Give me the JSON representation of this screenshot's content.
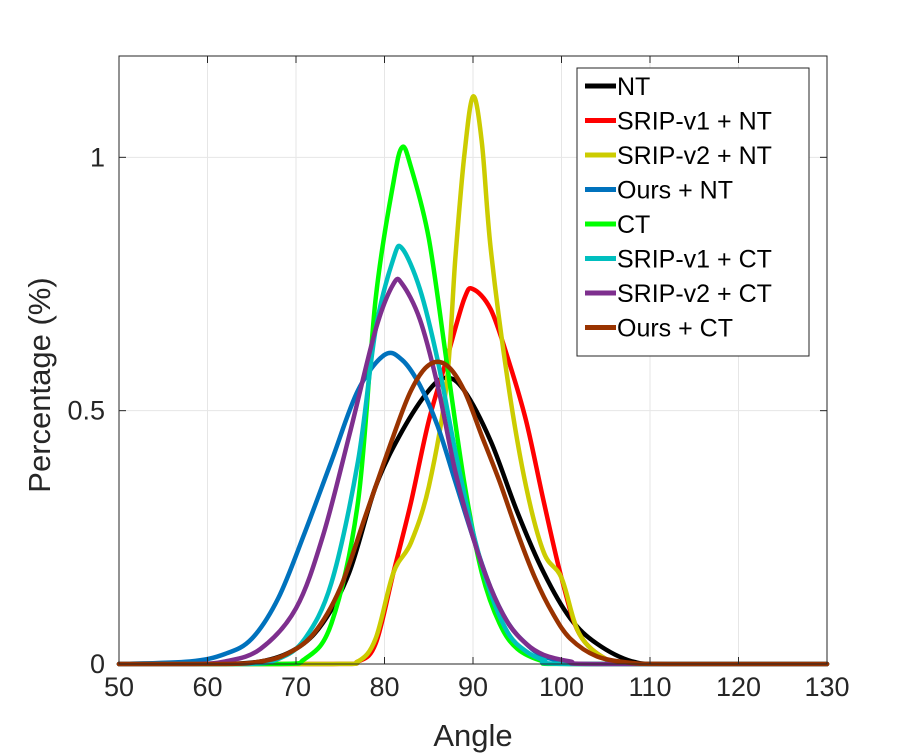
{
  "chart_data": {
    "type": "line",
    "title": "",
    "xlabel": "Angle",
    "ylabel": "Percentage (%)",
    "xlim": [
      50,
      130
    ],
    "ylim": [
      0,
      1.2
    ],
    "xticks": [
      50,
      60,
      70,
      80,
      90,
      100,
      110,
      120,
      130
    ],
    "yticks": [
      0,
      0.5,
      1
    ],
    "ytick_labels": [
      "0",
      "0.5",
      "1"
    ],
    "grid": true,
    "legend_position": "top-right",
    "series": [
      {
        "name": "NT",
        "color": "#000000",
        "points": [
          [
            50,
            0
          ],
          [
            60,
            0
          ],
          [
            66,
            0.005
          ],
          [
            70,
            0.03
          ],
          [
            73,
            0.08
          ],
          [
            76,
            0.18
          ],
          [
            79,
            0.35
          ],
          [
            82,
            0.46
          ],
          [
            85,
            0.54
          ],
          [
            87,
            0.565
          ],
          [
            89,
            0.54
          ],
          [
            92,
            0.44
          ],
          [
            95,
            0.3
          ],
          [
            98,
            0.18
          ],
          [
            101,
            0.09
          ],
          [
            104,
            0.04
          ],
          [
            108,
            0.005
          ],
          [
            112,
            0
          ],
          [
            130,
            0
          ]
        ]
      },
      {
        "name": "SRIP-v1 + NT",
        "color": "#ff0000",
        "points": [
          [
            50,
            0
          ],
          [
            74,
            0
          ],
          [
            77,
            0.005
          ],
          [
            79,
            0.04
          ],
          [
            81,
            0.18
          ],
          [
            83,
            0.32
          ],
          [
            85,
            0.48
          ],
          [
            87,
            0.6
          ],
          [
            89,
            0.72
          ],
          [
            90,
            0.74
          ],
          [
            92,
            0.7
          ],
          [
            94,
            0.6
          ],
          [
            96,
            0.48
          ],
          [
            98,
            0.32
          ],
          [
            100,
            0.17
          ],
          [
            102,
            0.06
          ],
          [
            105,
            0.01
          ],
          [
            108,
            0
          ],
          [
            130,
            0
          ]
        ]
      },
      {
        "name": "SRIP-v2 + NT",
        "color": "#cccc00",
        "points": [
          [
            50,
            0
          ],
          [
            74,
            0
          ],
          [
            77,
            0.005
          ],
          [
            79,
            0.05
          ],
          [
            81,
            0.18
          ],
          [
            83,
            0.24
          ],
          [
            85,
            0.35
          ],
          [
            87,
            0.55
          ],
          [
            88,
            0.8
          ],
          [
            89,
            1.0
          ],
          [
            90,
            1.12
          ],
          [
            91,
            1.03
          ],
          [
            92,
            0.82
          ],
          [
            94,
            0.55
          ],
          [
            96,
            0.35
          ],
          [
            98,
            0.22
          ],
          [
            100,
            0.17
          ],
          [
            102,
            0.06
          ],
          [
            105,
            0.01
          ],
          [
            108,
            0
          ],
          [
            130,
            0
          ]
        ]
      },
      {
        "name": "Ours + NT",
        "color": "#0072bd",
        "points": [
          [
            50,
            0
          ],
          [
            58,
            0.005
          ],
          [
            62,
            0.02
          ],
          [
            65,
            0.05
          ],
          [
            68,
            0.13
          ],
          [
            71,
            0.26
          ],
          [
            74,
            0.4
          ],
          [
            77,
            0.54
          ],
          [
            80,
            0.61
          ],
          [
            82,
            0.6
          ],
          [
            84,
            0.55
          ],
          [
            86,
            0.47
          ],
          [
            88,
            0.36
          ],
          [
            90,
            0.25
          ],
          [
            92,
            0.15
          ],
          [
            94,
            0.08
          ],
          [
            96,
            0.04
          ],
          [
            98,
            0.015
          ],
          [
            101,
            0.003
          ],
          [
            104,
            0
          ],
          [
            130,
            0
          ]
        ]
      },
      {
        "name": "CT",
        "color": "#00ff00",
        "points": [
          [
            50,
            0
          ],
          [
            68,
            0
          ],
          [
            71,
            0.01
          ],
          [
            74,
            0.08
          ],
          [
            77,
            0.32
          ],
          [
            79,
            0.72
          ],
          [
            81,
            0.95
          ],
          [
            82,
            1.02
          ],
          [
            83,
            0.98
          ],
          [
            85,
            0.84
          ],
          [
            87,
            0.6
          ],
          [
            89,
            0.36
          ],
          [
            91,
            0.18
          ],
          [
            93,
            0.08
          ],
          [
            95,
            0.03
          ],
          [
            98,
            0.005
          ],
          [
            101,
            0
          ],
          [
            130,
            0
          ]
        ]
      },
      {
        "name": "SRIP-v1 + CT",
        "color": "#00bfbf",
        "points": [
          [
            50,
            0
          ],
          [
            64,
            0
          ],
          [
            68,
            0.01
          ],
          [
            71,
            0.05
          ],
          [
            74,
            0.16
          ],
          [
            77,
            0.4
          ],
          [
            79,
            0.66
          ],
          [
            81,
            0.8
          ],
          [
            82,
            0.82
          ],
          [
            84,
            0.74
          ],
          [
            86,
            0.6
          ],
          [
            88,
            0.42
          ],
          [
            90,
            0.26
          ],
          [
            92,
            0.14
          ],
          [
            94,
            0.06
          ],
          [
            96,
            0.025
          ],
          [
            98,
            0.008
          ],
          [
            101,
            0
          ],
          [
            130,
            0
          ]
        ]
      },
      {
        "name": "SRIP-v2 + CT",
        "color": "#7e2f8e",
        "points": [
          [
            50,
            0
          ],
          [
            58,
            0
          ],
          [
            62,
            0.005
          ],
          [
            66,
            0.03
          ],
          [
            70,
            0.11
          ],
          [
            73,
            0.25
          ],
          [
            76,
            0.45
          ],
          [
            79,
            0.66
          ],
          [
            81,
            0.75
          ],
          [
            82,
            0.75
          ],
          [
            84,
            0.68
          ],
          [
            86,
            0.55
          ],
          [
            88,
            0.38
          ],
          [
            90,
            0.25
          ],
          [
            92,
            0.15
          ],
          [
            94,
            0.08
          ],
          [
            96,
            0.04
          ],
          [
            98,
            0.018
          ],
          [
            101,
            0.005
          ],
          [
            104,
            0
          ],
          [
            130,
            0
          ]
        ]
      },
      {
        "name": "Ours + CT",
        "color": "#993300",
        "points": [
          [
            50,
            0
          ],
          [
            62,
            0
          ],
          [
            66,
            0.005
          ],
          [
            69,
            0.02
          ],
          [
            72,
            0.06
          ],
          [
            75,
            0.15
          ],
          [
            78,
            0.3
          ],
          [
            81,
            0.45
          ],
          [
            83,
            0.54
          ],
          [
            85,
            0.59
          ],
          [
            87,
            0.59
          ],
          [
            89,
            0.54
          ],
          [
            91,
            0.45
          ],
          [
            93,
            0.36
          ],
          [
            95,
            0.26
          ],
          [
            97,
            0.17
          ],
          [
            99,
            0.1
          ],
          [
            101,
            0.05
          ],
          [
            104,
            0.015
          ],
          [
            108,
            0.002
          ],
          [
            112,
            0
          ],
          [
            130,
            0
          ]
        ]
      }
    ]
  }
}
